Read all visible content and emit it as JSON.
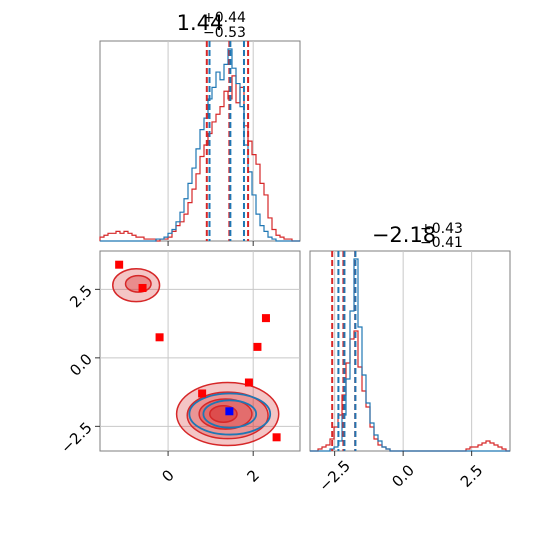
{
  "chart_data": {
    "type": "corner",
    "colors": {
      "red": "#d62728",
      "blue": "#1f77b4",
      "marker_blue": "#0000ff",
      "marker_red": "#ff0000"
    },
    "parameters": [
      {
        "title": {
          "median": "1.44",
          "plus": "+0.44",
          "minus": "−0.53"
        },
        "xlim": [
          -1.6,
          3.1
        ],
        "ticks": [
          0,
          2
        ],
        "tick_labels": [
          "0",
          "2"
        ],
        "quantile_lines": {
          "red": [
            0.91,
            1.44,
            1.88
          ],
          "blue": [
            0.95,
            1.44,
            1.76
          ]
        }
      },
      {
        "title": {
          "median": "−2.18",
          "plus": "+0.43",
          "minus": "−0.41"
        },
        "xlim": [
          -3.4,
          3.9
        ],
        "ticks": [
          -2.5,
          0.0,
          2.5
        ],
        "tick_labels": [
          "−2.5",
          "0.0",
          "2.5"
        ],
        "quantile_lines": {
          "red": [
            -2.59,
            -2.18,
            -1.75
          ],
          "blue": [
            -2.4,
            -2.18,
            -1.78
          ]
        }
      }
    ],
    "joint": {
      "xlim": [
        -1.6,
        3.1
      ],
      "ylim": [
        -3.4,
        3.9
      ],
      "xticks": [
        0,
        2
      ],
      "xtick_labels": [
        "0",
        "2"
      ],
      "yticks": [
        2.5,
        0.0,
        -2.5
      ],
      "ytick_labels": [
        "2.5",
        "0.0",
        "−2.5"
      ],
      "red_points": [
        [
          -1.15,
          3.4
        ],
        [
          -0.6,
          2.55
        ],
        [
          -0.2,
          0.75
        ],
        [
          2.3,
          1.45
        ],
        [
          2.1,
          0.4
        ],
        [
          1.9,
          -0.9
        ],
        [
          0.8,
          -1.3
        ],
        [
          2.55,
          -2.9
        ]
      ],
      "blue_point": [
        1.44,
        -1.95
      ],
      "red_contours": [
        {
          "cx": 1.4,
          "cy": -2.05,
          "rx": 1.2,
          "ry": 1.15,
          "level": 0.95
        },
        {
          "cx": 1.4,
          "cy": -2.1,
          "rx": 0.95,
          "ry": 0.85,
          "level": 0.86
        },
        {
          "cx": 1.35,
          "cy": -2.05,
          "rx": 0.62,
          "ry": 0.55,
          "level": 0.68
        },
        {
          "cx": 1.3,
          "cy": -2.05,
          "rx": 0.32,
          "ry": 0.3,
          "level": 0.39
        },
        {
          "cx": -0.75,
          "cy": 2.65,
          "rx": 0.55,
          "ry": 0.6,
          "level": 0.95
        },
        {
          "cx": -0.7,
          "cy": 2.7,
          "rx": 0.3,
          "ry": 0.3,
          "level": 0.68
        }
      ],
      "blue_contours": [
        {
          "cx": 1.45,
          "cy": -2.05,
          "rx": 0.95,
          "ry": 0.75,
          "level": 0.95
        },
        {
          "cx": 1.45,
          "cy": -2.05,
          "rx": 0.62,
          "ry": 0.5,
          "level": 0.68
        }
      ]
    },
    "marginals": [
      {
        "bins_x": [
          -1.6,
          3.1
        ],
        "red": [
          0.02,
          0.03,
          0.04,
          0.04,
          0.05,
          0.04,
          0.05,
          0.04,
          0.03,
          0.02,
          0.02,
          0.01,
          0.01,
          0.01,
          0.0,
          0.01,
          0.01,
          0.02,
          0.05,
          0.08,
          0.1,
          0.14,
          0.2,
          0.27,
          0.35,
          0.44,
          0.5,
          0.56,
          0.62,
          0.66,
          0.7,
          0.78,
          0.74,
          0.86,
          0.72,
          0.8,
          0.6,
          0.52,
          0.45,
          0.4,
          0.3,
          0.24,
          0.12,
          0.06,
          0.03,
          0.02,
          0.01,
          0.01,
          0.0,
          0.0
        ],
        "blue": [
          0.0,
          0.0,
          0.0,
          0.0,
          0.0,
          0.0,
          0.0,
          0.0,
          0.0,
          0.0,
          0.0,
          0.0,
          0.0,
          0.0,
          0.01,
          0.01,
          0.02,
          0.04,
          0.06,
          0.1,
          0.15,
          0.22,
          0.3,
          0.38,
          0.48,
          0.58,
          0.64,
          0.74,
          0.8,
          0.88,
          0.84,
          0.92,
          1.0,
          0.9,
          0.82,
          0.7,
          0.5,
          0.36,
          0.24,
          0.14,
          0.08,
          0.05,
          0.02,
          0.01,
          0.0,
          0.0,
          0.0,
          0.0,
          0.0,
          0.0
        ]
      },
      {
        "bins_x": [
          -3.4,
          3.9
        ],
        "red": [
          0.0,
          0.0,
          0.01,
          0.02,
          0.03,
          0.06,
          0.12,
          0.18,
          0.28,
          0.44,
          0.56,
          0.6,
          0.42,
          0.3,
          0.22,
          0.12,
          0.06,
          0.03,
          0.02,
          0.01,
          0.0,
          0.0,
          0.0,
          0.0,
          0.0,
          0.0,
          0.0,
          0.0,
          0.0,
          0.0,
          0.0,
          0.0,
          0.0,
          0.0,
          0.0,
          0.0,
          0.0,
          0.0,
          0.0,
          0.01,
          0.02,
          0.02,
          0.03,
          0.04,
          0.05,
          0.04,
          0.03,
          0.02,
          0.01,
          0.0
        ],
        "blue": [
          0.0,
          0.0,
          0.0,
          0.0,
          0.0,
          0.01,
          0.02,
          0.05,
          0.18,
          0.36,
          0.7,
          0.96,
          0.62,
          0.38,
          0.24,
          0.14,
          0.08,
          0.05,
          0.02,
          0.01,
          0.0,
          0.0,
          0.0,
          0.0,
          0.0,
          0.0,
          0.0,
          0.0,
          0.0,
          0.0,
          0.0,
          0.0,
          0.0,
          0.0,
          0.0,
          0.0,
          0.0,
          0.0,
          0.0,
          0.0,
          0.0,
          0.0,
          0.0,
          0.0,
          0.0,
          0.0,
          0.0,
          0.0,
          0.0,
          0.0
        ]
      }
    ]
  }
}
